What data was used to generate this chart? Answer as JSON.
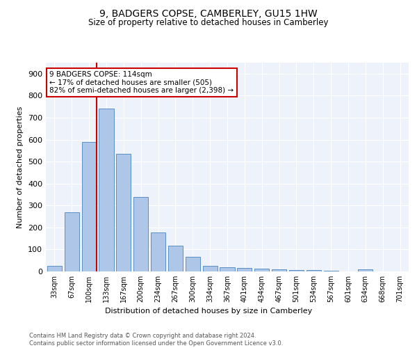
{
  "title": "9, BADGERS COPSE, CAMBERLEY, GU15 1HW",
  "subtitle": "Size of property relative to detached houses in Camberley",
  "xlabel": "Distribution of detached houses by size in Camberley",
  "ylabel": "Number of detached properties",
  "bar_labels": [
    "33sqm",
    "67sqm",
    "100sqm",
    "133sqm",
    "167sqm",
    "200sqm",
    "234sqm",
    "267sqm",
    "300sqm",
    "334sqm",
    "367sqm",
    "401sqm",
    "434sqm",
    "467sqm",
    "501sqm",
    "534sqm",
    "567sqm",
    "601sqm",
    "634sqm",
    "668sqm",
    "701sqm"
  ],
  "bar_values": [
    25,
    270,
    590,
    740,
    535,
    340,
    178,
    118,
    67,
    25,
    18,
    16,
    14,
    8,
    6,
    5,
    4,
    0,
    8,
    0,
    0
  ],
  "bar_color": "#aec6e8",
  "bar_edge_color": "#5a8fc2",
  "annotation_text": "9 BADGERS COPSE: 114sqm\n← 17% of detached houses are smaller (505)\n82% of semi-detached houses are larger (2,398) →",
  "annotation_box_color": "#ffffff",
  "annotation_box_edge_color": "#cc0000",
  "vline_color": "#cc0000",
  "ylim": [
    0,
    950
  ],
  "yticks": [
    0,
    100,
    200,
    300,
    400,
    500,
    600,
    700,
    800,
    900
  ],
  "bg_color": "#eef3fb",
  "footer_line1": "Contains HM Land Registry data © Crown copyright and database right 2024.",
  "footer_line2": "Contains public sector information licensed under the Open Government Licence v3.0."
}
